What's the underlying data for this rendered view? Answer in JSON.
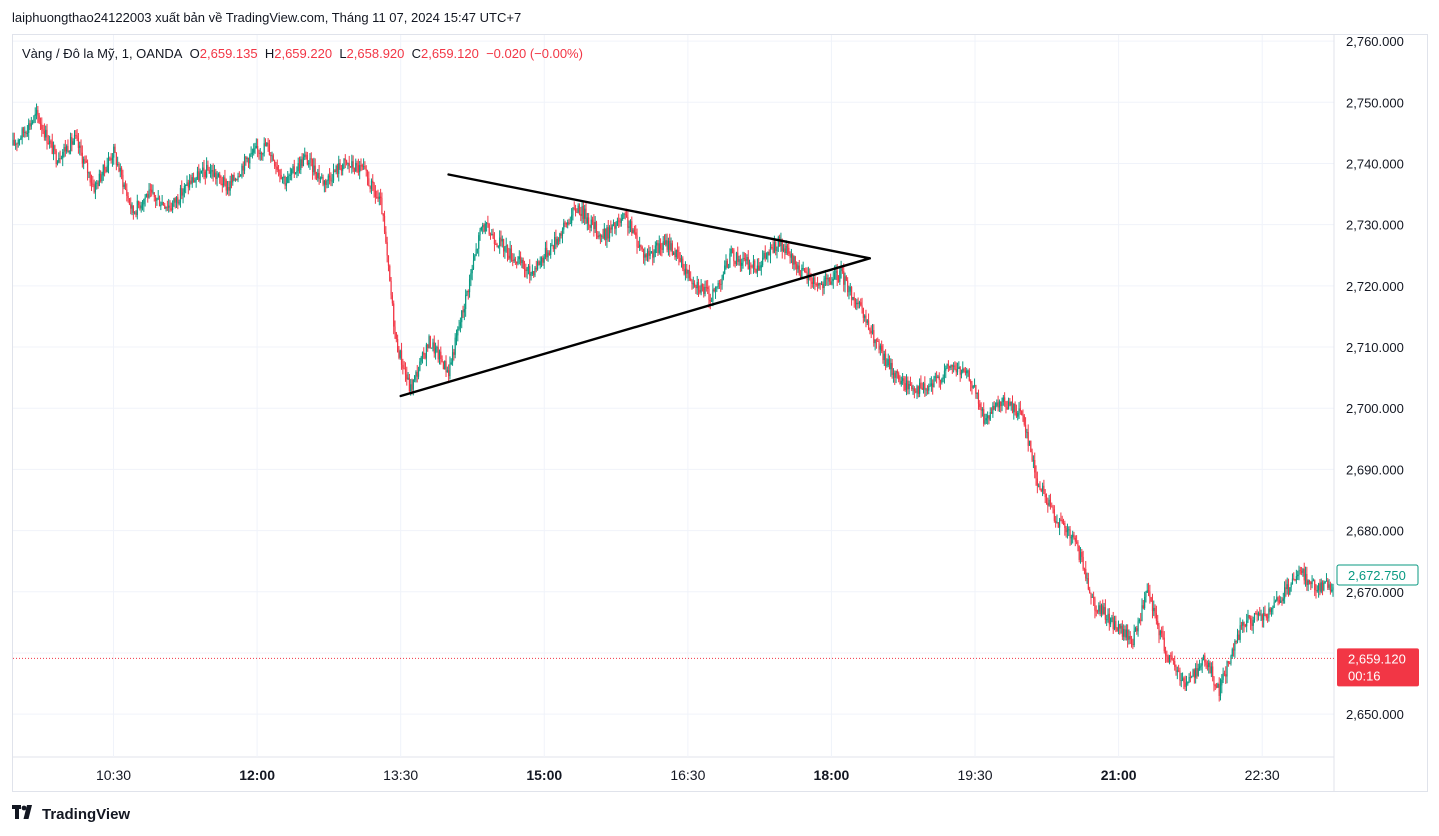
{
  "header": {
    "publisher_line": "laiphuongthao24122003 xuất bản về TradingView.com, Tháng 11 07, 2024 15:47 UTC+7"
  },
  "legend": {
    "symbol": "Vàng / Đô la Mỹ, 1, OANDA",
    "open_label": "O",
    "open_value": "2,659.135",
    "high_label": "H",
    "high_value": "2,659.220",
    "low_label": "L",
    "low_value": "2,658.920",
    "close_label": "C",
    "close_value": "2,659.120",
    "change": "−0.020 (−0.00%)"
  },
  "footer": {
    "brand": "TradingView"
  },
  "colors": {
    "up": "#089981",
    "down": "#f23645",
    "grid": "#f0f3fa",
    "axis_text": "#131722",
    "last_price_bg": "#f23645",
    "ref_price_border": "#089981",
    "drawing": "#000000"
  },
  "chart_data": {
    "type": "candlestick",
    "y_axis": {
      "range": [
        2643,
        2761
      ],
      "ticks": [
        "2,650.000",
        "2,660.000",
        "2,670.000",
        "2,680.000",
        "2,690.000",
        "2,700.000",
        "2,710.000",
        "2,720.000",
        "2,730.000",
        "2,740.000",
        "2,750.000",
        "2,760.000"
      ],
      "tick_values": [
        2650,
        2660,
        2670,
        2680,
        2690,
        2700,
        2710,
        2720,
        2730,
        2740,
        2750,
        2760
      ],
      "position": "right"
    },
    "x_axis": {
      "unit": "hours",
      "range": [
        9.45,
        23.25
      ],
      "ticks": [
        {
          "label": "10:30",
          "t": 10.5,
          "bold": false
        },
        {
          "label": "12:00",
          "t": 12.0,
          "bold": true
        },
        {
          "label": "13:30",
          "t": 13.5,
          "bold": false
        },
        {
          "label": "15:00",
          "t": 15.0,
          "bold": true
        },
        {
          "label": "16:30",
          "t": 16.5,
          "bold": false
        },
        {
          "label": "18:00",
          "t": 18.0,
          "bold": true
        },
        {
          "label": "19:30",
          "t": 19.5,
          "bold": false
        },
        {
          "label": "21:00",
          "t": 21.0,
          "bold": true
        },
        {
          "label": "22:30",
          "t": 22.5,
          "bold": false
        }
      ]
    },
    "price_path": [
      [
        9.45,
        2743
      ],
      [
        9.7,
        2748
      ],
      [
        9.9,
        2741
      ],
      [
        10.1,
        2744
      ],
      [
        10.3,
        2736
      ],
      [
        10.5,
        2742
      ],
      [
        10.7,
        2732
      ],
      [
        10.85,
        2735
      ],
      [
        11.1,
        2733
      ],
      [
        11.3,
        2737
      ],
      [
        11.5,
        2739
      ],
      [
        11.7,
        2736
      ],
      [
        11.9,
        2741
      ],
      [
        12.1,
        2743
      ],
      [
        12.3,
        2737
      ],
      [
        12.5,
        2741
      ],
      [
        12.7,
        2737
      ],
      [
        12.9,
        2740
      ],
      [
        13.1,
        2739
      ],
      [
        13.3,
        2733
      ],
      [
        13.45,
        2711
      ],
      [
        13.6,
        2703
      ],
      [
        13.8,
        2711
      ],
      [
        14.0,
        2706
      ],
      [
        14.15,
        2716
      ],
      [
        14.35,
        2730
      ],
      [
        14.6,
        2726
      ],
      [
        14.85,
        2722
      ],
      [
        15.1,
        2727
      ],
      [
        15.35,
        2733
      ],
      [
        15.6,
        2728
      ],
      [
        15.85,
        2731
      ],
      [
        16.05,
        2725
      ],
      [
        16.3,
        2727
      ],
      [
        16.5,
        2722
      ],
      [
        16.75,
        2718
      ],
      [
        16.95,
        2725
      ],
      [
        17.2,
        2723
      ],
      [
        17.45,
        2727
      ],
      [
        17.7,
        2722
      ],
      [
        17.9,
        2720
      ],
      [
        18.1,
        2722
      ],
      [
        18.3,
        2716
      ],
      [
        18.55,
        2708
      ],
      [
        18.75,
        2704
      ],
      [
        19.0,
        2703
      ],
      [
        19.25,
        2707
      ],
      [
        19.45,
        2705
      ],
      [
        19.6,
        2698
      ],
      [
        19.8,
        2701
      ],
      [
        20.0,
        2699
      ],
      [
        20.15,
        2688
      ],
      [
        20.35,
        2682
      ],
      [
        20.55,
        2678
      ],
      [
        20.75,
        2668
      ],
      [
        21.0,
        2664
      ],
      [
        21.15,
        2662
      ],
      [
        21.3,
        2670
      ],
      [
        21.5,
        2660
      ],
      [
        21.7,
        2655
      ],
      [
        21.9,
        2659
      ],
      [
        22.05,
        2654
      ],
      [
        22.3,
        2665
      ],
      [
        22.55,
        2666
      ],
      [
        22.75,
        2670
      ],
      [
        22.9,
        2673
      ],
      [
        23.05,
        2671
      ]
    ],
    "triangle": {
      "upper_line": [
        [
          14.0,
          2738.2
        ],
        [
          18.4,
          2724.5
        ]
      ],
      "lower_line": [
        [
          13.5,
          2702.0
        ],
        [
          18.4,
          2724.5
        ]
      ]
    },
    "reference_price": {
      "value": 2672.75,
      "label": "2,672.750"
    },
    "last_price": {
      "value": 2659.12,
      "label": "2,659.120",
      "countdown": "00:16"
    }
  }
}
